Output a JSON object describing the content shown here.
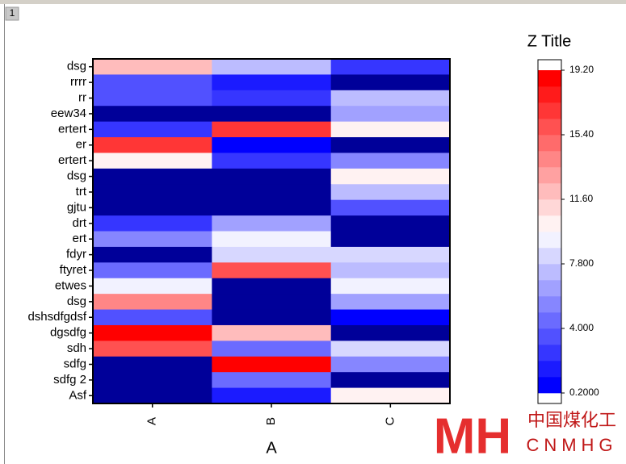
{
  "window": {
    "tab": "1"
  },
  "chart_data": {
    "type": "heatmap",
    "x_title": "A",
    "colorbar_title": "Z Title",
    "x_categories": [
      "A",
      "B",
      "C"
    ],
    "y_categories": [
      "dsg",
      "rrrr",
      "rr",
      "eew34",
      "ertert",
      "er",
      "ertert",
      "dsg",
      "trt",
      "gjtu",
      "drt",
      "ert",
      "fdyr",
      "ftyret",
      "etwes",
      "dsg",
      "dshsdfgdsf",
      "dgsdfg",
      "sdh",
      "sdfg",
      "sdfg 2",
      "Asf"
    ],
    "z": [
      [
        11.8,
        7.2,
        2.5
      ],
      [
        4.0,
        1.2,
        0
      ],
      [
        4.0,
        2.2,
        7.0
      ],
      [
        0,
        0,
        6.2
      ],
      [
        2.5,
        16.5,
        10.5
      ],
      [
        16.8,
        0.5,
        0
      ],
      [
        10.5,
        2.5,
        5.0
      ],
      [
        0,
        0,
        10.3
      ],
      [
        0,
        0,
        7.0
      ],
      [
        0,
        0,
        3.5
      ],
      [
        2.5,
        6.5,
        0
      ],
      [
        5.2,
        8.8,
        0
      ],
      [
        0,
        8.2,
        8.5
      ],
      [
        4.8,
        16.2,
        7.2
      ],
      [
        8.8,
        0,
        8.8
      ],
      [
        14.2,
        0,
        6.5
      ],
      [
        3.2,
        0,
        1.0
      ],
      [
        18.5,
        12.2,
        0
      ],
      [
        16.0,
        4.8,
        8.2
      ],
      [
        0,
        18.8,
        5.5
      ],
      [
        0,
        4.8,
        0
      ],
      [
        0,
        2.0,
        10.0
      ]
    ],
    "zlim": [
      0.2,
      19.2
    ],
    "zticks": [
      {
        "value": 0.2,
        "label": "0.2000"
      },
      {
        "value": 4,
        "label": "4.000"
      },
      {
        "value": 7.8,
        "label": "7.800"
      },
      {
        "value": 11.6,
        "label": "11.60"
      },
      {
        "value": 15.4,
        "label": "15.40"
      },
      {
        "value": 19.2,
        "label": "19.20"
      }
    ],
    "levels": 20,
    "colormap": [
      "#0000ff",
      "#ffffff",
      "#ff0000"
    ],
    "under_color": "#000099",
    "over_color": "#ffffff"
  },
  "watermark": {
    "logo": "MH",
    "chinese": "中国煤化工",
    "latin": "CNMHG"
  }
}
